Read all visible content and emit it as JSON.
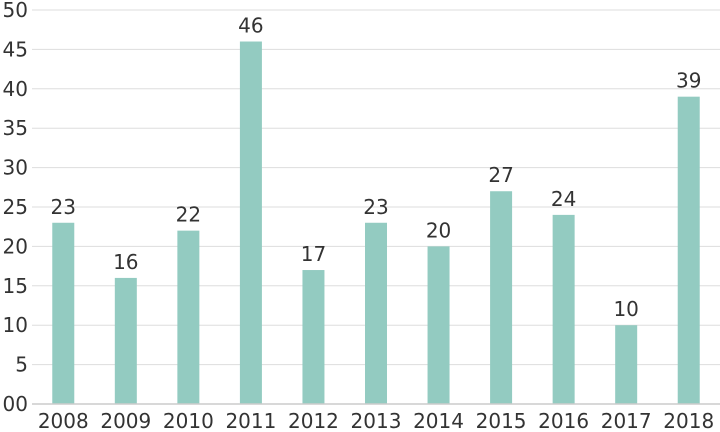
{
  "chart_data": {
    "type": "bar",
    "categories": [
      "2008",
      "2009",
      "2010",
      "2011",
      "2012",
      "2013",
      "2014",
      "2015",
      "2016",
      "2017",
      "2018"
    ],
    "values": [
      23,
      16,
      22,
      46,
      17,
      23,
      20,
      27,
      24,
      10,
      39
    ],
    "ylim": [
      0,
      50
    ],
    "yticks": [
      0,
      5,
      10,
      15,
      20,
      25,
      30,
      35,
      40,
      45,
      50
    ],
    "ytick_labels": [
      "00",
      "5",
      "10",
      "15",
      "20",
      "25",
      "30",
      "35",
      "40",
      "45",
      "50"
    ],
    "grid": true,
    "data_labels": true,
    "bar_color": "#93cbc1",
    "grid_color": "#dddddd",
    "axis_color": "#cccccc"
  }
}
